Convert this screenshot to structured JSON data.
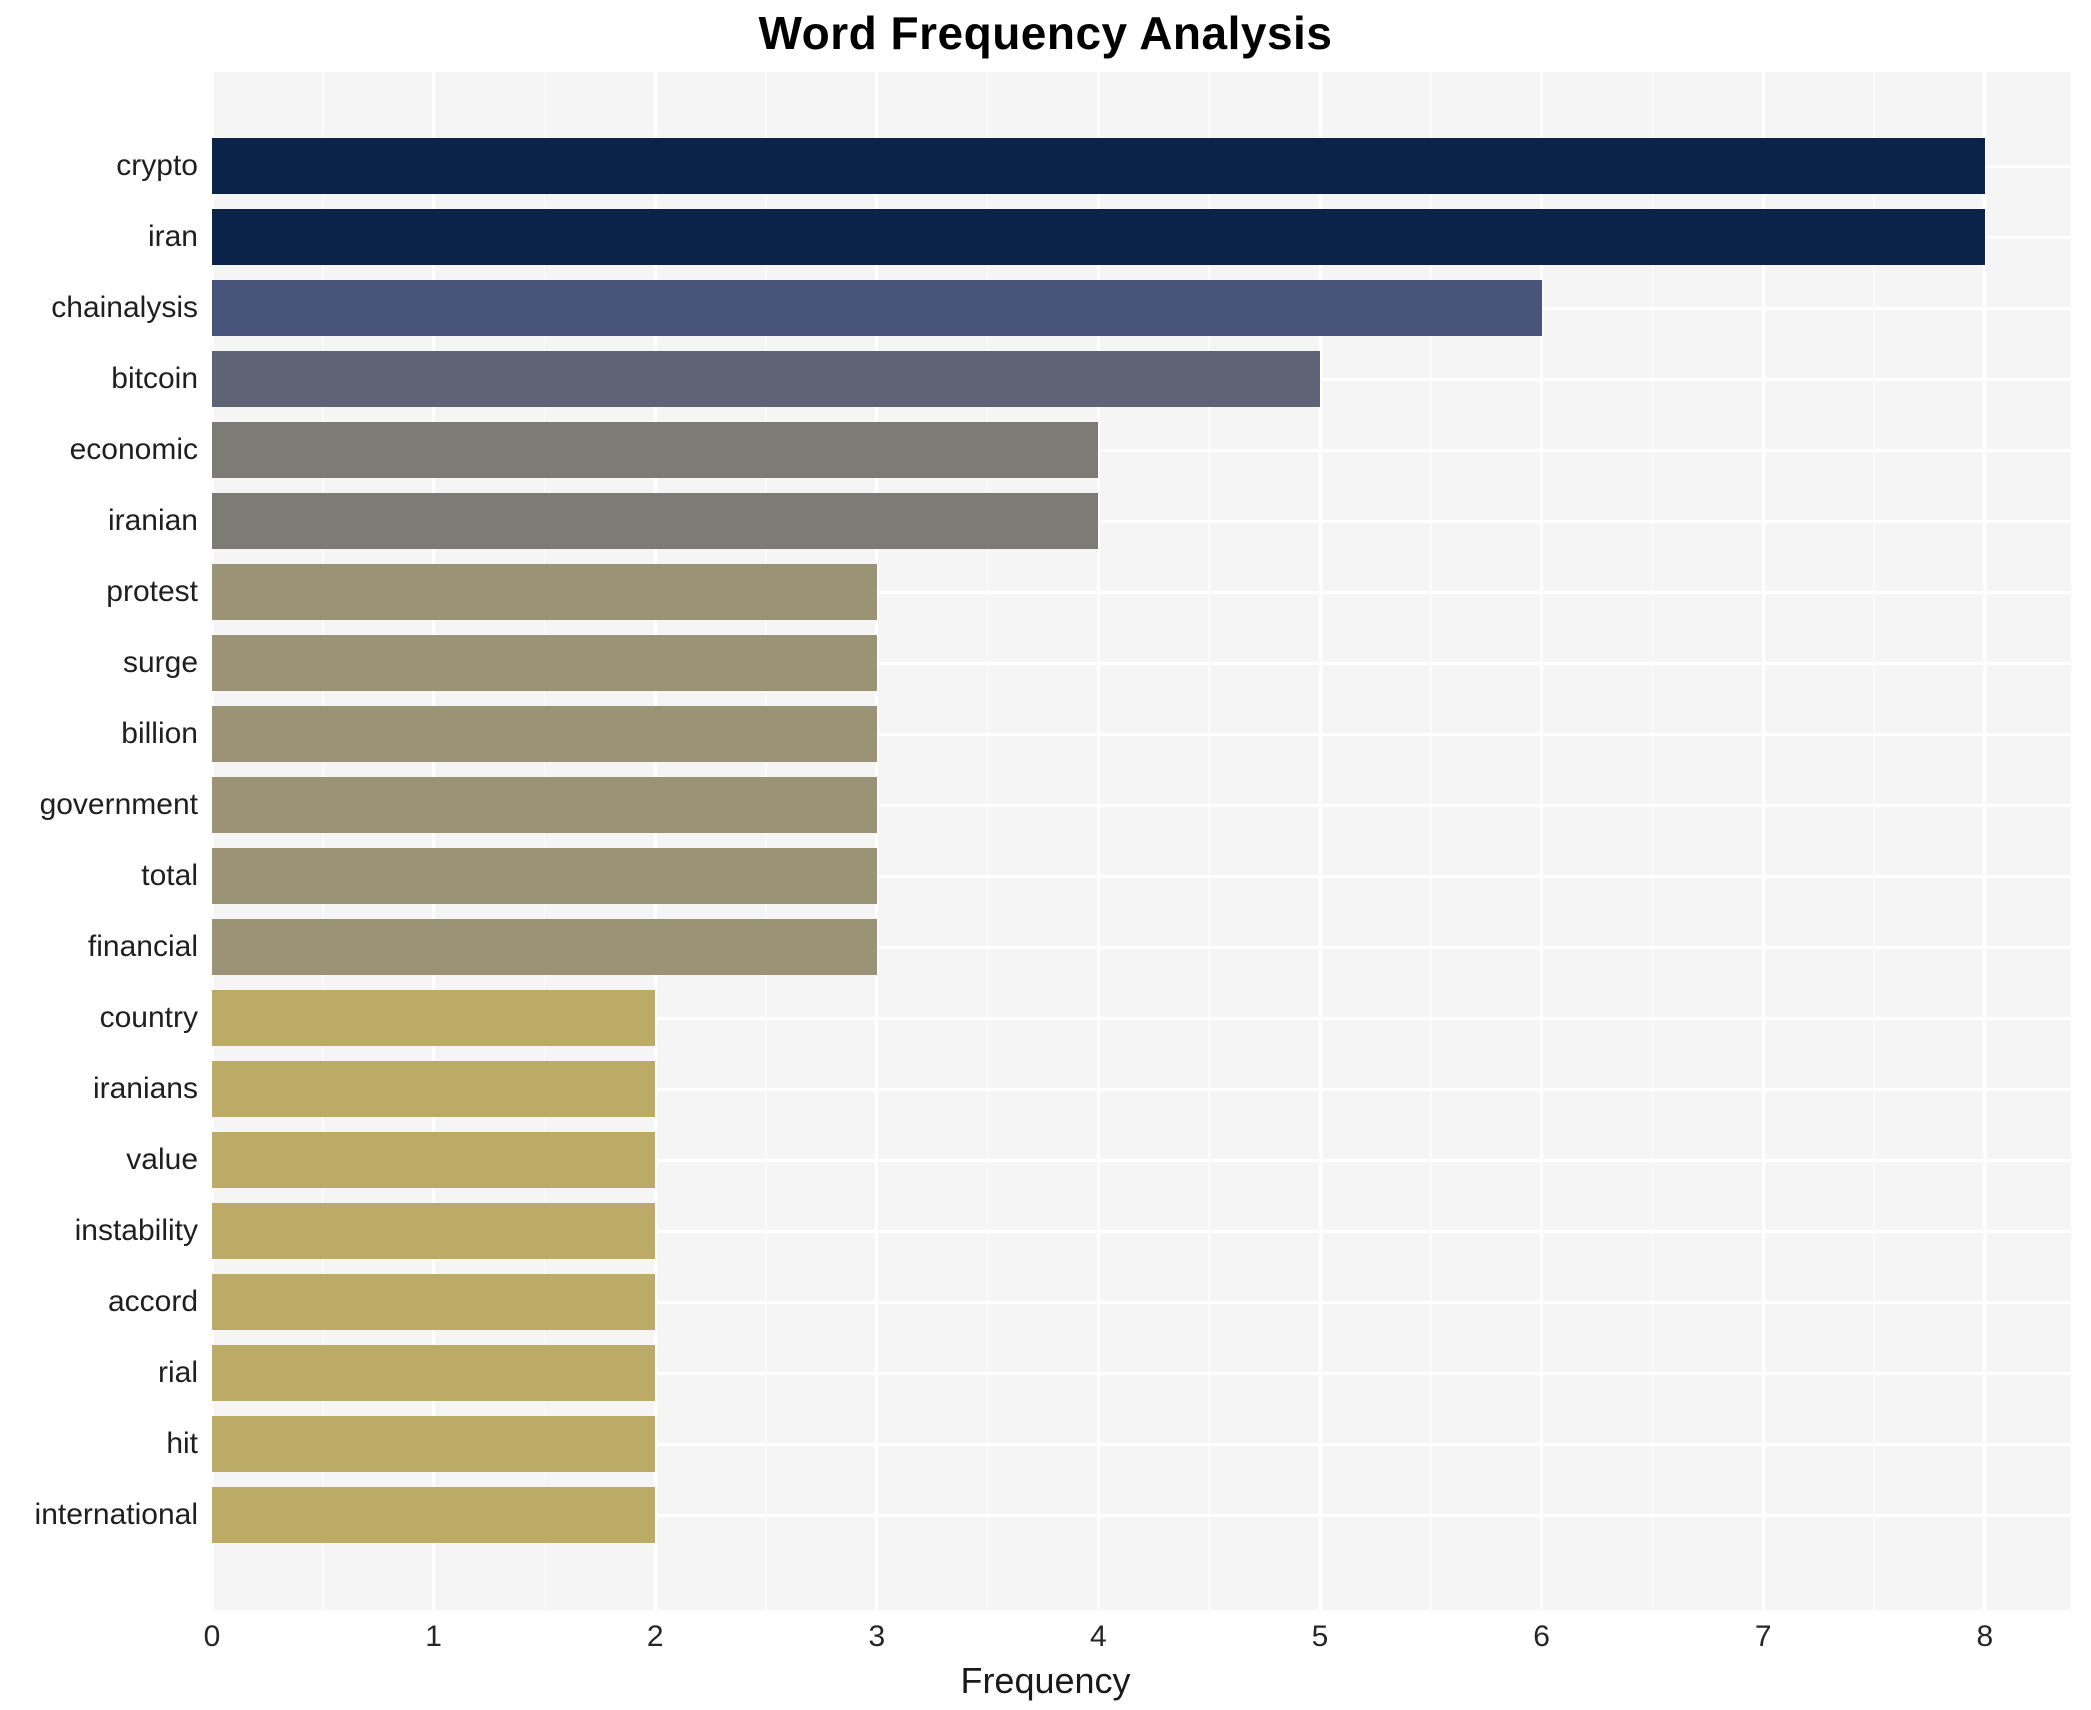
{
  "chart_data": {
    "type": "bar",
    "orientation": "horizontal",
    "title": "Word Frequency Analysis",
    "xlabel": "Frequency",
    "ylabel": "",
    "categories": [
      "crypto",
      "iran",
      "chainalysis",
      "bitcoin",
      "economic",
      "iranian",
      "protest",
      "surge",
      "billion",
      "government",
      "total",
      "financial",
      "country",
      "iranians",
      "value",
      "instability",
      "accord",
      "rial",
      "hit",
      "international"
    ],
    "values": [
      8,
      8,
      6,
      5,
      4,
      4,
      3,
      3,
      3,
      3,
      3,
      3,
      2,
      2,
      2,
      2,
      2,
      2,
      2,
      2
    ],
    "x_ticks": [
      0,
      1,
      2,
      3,
      4,
      5,
      6,
      7,
      8
    ],
    "xlim": [
      0,
      8.4
    ],
    "grid": true,
    "legend": "none",
    "colors": {
      "bar_color_by_value": {
        "8": "#0b2349",
        "6": "#48547a",
        "5": "#5e6375",
        "4": "#7d7b75",
        "3": "#9b9375",
        "2": "#bcab66"
      },
      "panel_background": "#f5f5f6",
      "gridline": "#ffffff",
      "title_text": "#000000",
      "tick_text": "#262626"
    }
  }
}
